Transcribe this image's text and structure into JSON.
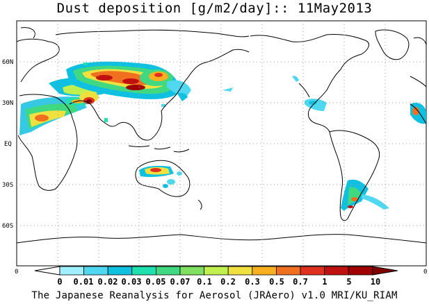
{
  "title": "Dust deposition [g/m2/day]:: 11May2013",
  "footer": "The Japanese Reanalysis for Aerosol (JRAero) v1.0 MRI/KU_RIAM",
  "axis": {
    "lat_labels": [
      "60N",
      "30N",
      "EQ",
      "30S",
      "60S"
    ],
    "lon_labels": [
      "0",
      "0"
    ]
  },
  "colorbar": {
    "levels": [
      "0",
      "0.01",
      "0.02",
      "0.03",
      "0.05",
      "0.07",
      "0.1",
      "0.2",
      "0.3",
      "0.5",
      "0.7",
      "1",
      "5",
      "10"
    ],
    "colors": [
      "#ffffff",
      "#a0f0ff",
      "#50d8f0",
      "#10c0e0",
      "#20e0b0",
      "#40d880",
      "#80e060",
      "#c0f050",
      "#f0e040",
      "#f8b020",
      "#f07020",
      "#e03020",
      "#c01010",
      "#a00000",
      "#800000"
    ]
  },
  "chart_data": {
    "type": "heatmap",
    "title": "Dust deposition [g/m2/day]:: 11May2013",
    "variable": "Dust deposition",
    "units": "g/m2/day",
    "date": "11May2013",
    "projection": "cylindrical, 0 to 360 longitude",
    "grid": true,
    "legend": "bottom horizontal colorbar",
    "levels": [
      0,
      0.01,
      0.02,
      0.03,
      0.05,
      0.07,
      0.1,
      0.2,
      0.3,
      0.5,
      0.7,
      1,
      5,
      10
    ],
    "source": "The Japanese Reanalysis for Aerosol (JRAero) v1.0 MRI/KU_RIAM"
  }
}
